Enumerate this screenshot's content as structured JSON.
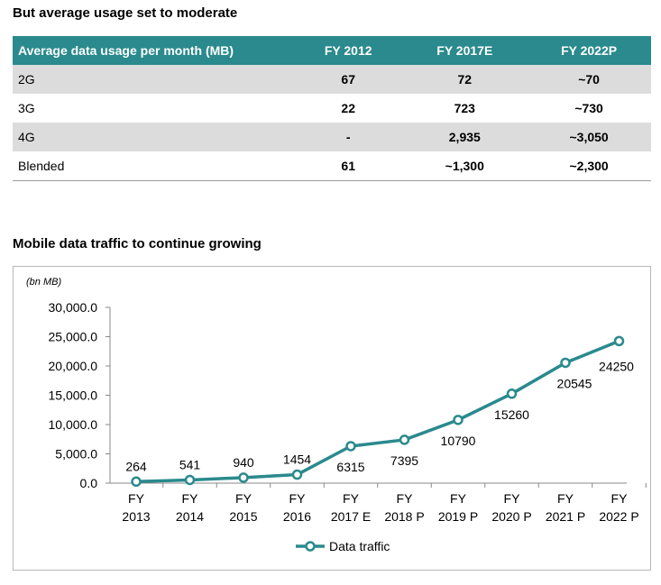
{
  "section1": {
    "title": "But average usage set to moderate"
  },
  "table": {
    "headers": [
      "Average data usage per month (MB)",
      "FY 2012",
      "FY 2017E",
      "FY 2022P"
    ],
    "rows": [
      [
        "2G",
        "67",
        "72",
        "~70"
      ],
      [
        "3G",
        "22",
        "723",
        "~730"
      ],
      [
        "4G",
        "-",
        "2,935",
        "~3,050"
      ],
      [
        "Blended",
        "61",
        "~1,300",
        "~2,300"
      ]
    ]
  },
  "section2": {
    "title": "Mobile data traffic to continue growing"
  },
  "colors": {
    "header_bg": "#2a8a8d",
    "series": "#2a8a8d",
    "shade": "#dcdcdc"
  },
  "chart_data": {
    "type": "line",
    "unit_label": "(bn MB)",
    "categories": [
      [
        "FY",
        "2013"
      ],
      [
        "FY",
        "2014"
      ],
      [
        "FY",
        "2015"
      ],
      [
        "FY",
        "2016"
      ],
      [
        "FY",
        "2017 E"
      ],
      [
        "FY",
        "2018 P"
      ],
      [
        "FY",
        "2019 P"
      ],
      [
        "FY",
        "2020 P"
      ],
      [
        "FY",
        "2021 P"
      ],
      [
        "FY",
        "2022 P"
      ]
    ],
    "series": [
      {
        "name": "Data traffic",
        "values": [
          264,
          541,
          940,
          1454,
          6315,
          7395,
          10790,
          15260,
          20545,
          24250
        ],
        "labels": [
          "264",
          "541",
          "940",
          "1454",
          "6315",
          "7395",
          "10790",
          "15260",
          "20545",
          "24250"
        ]
      }
    ],
    "yticks": [
      "0.0",
      "5,000.0",
      "10,000.0",
      "15,000.0",
      "20,000.0",
      "25,000.0",
      "30,000.0"
    ],
    "ylim": [
      0,
      30000
    ],
    "grid": false,
    "legend": "bottom"
  }
}
